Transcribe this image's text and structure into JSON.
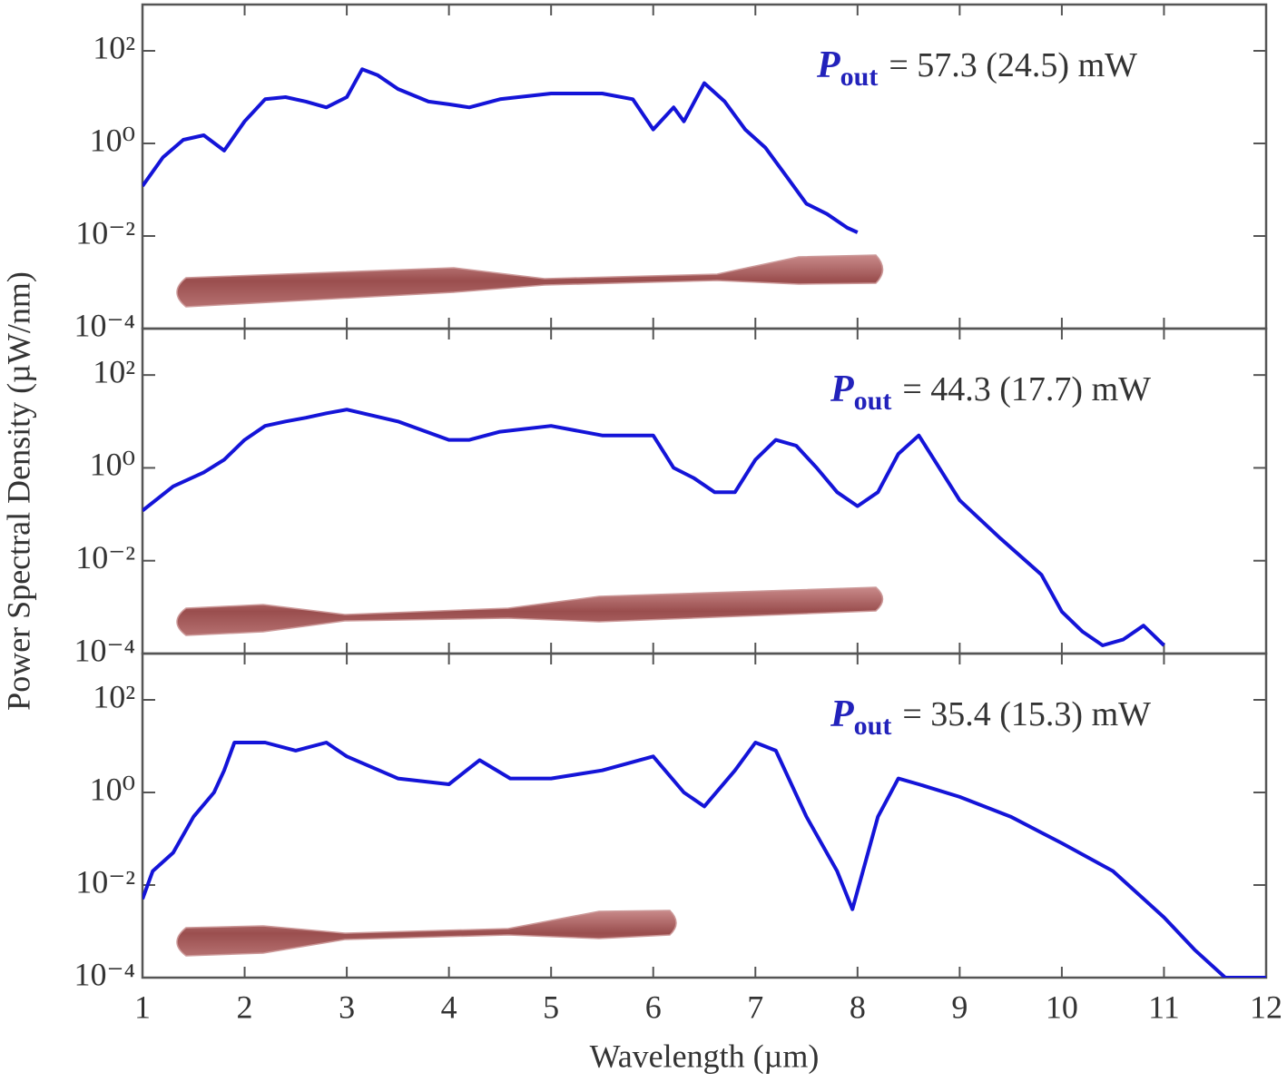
{
  "chart_data": [
    {
      "type": "line",
      "log_y": true,
      "color": "#1414d8",
      "annotation": {
        "symbol": "P",
        "subscript": "out",
        "text": "= 57.3 (24.5) mW"
      },
      "xlim": [
        1,
        12
      ],
      "ylim": [
        0.0001,
        1000
      ],
      "yticks": [
        {
          "value": 0.0001,
          "label": "10⁻⁴"
        },
        {
          "value": 0.01,
          "label": "10⁻²"
        },
        {
          "value": 1,
          "label": "10⁰"
        },
        {
          "value": 100,
          "label": "10²"
        }
      ],
      "x": [
        1.0,
        1.2,
        1.4,
        1.6,
        1.8,
        2.0,
        2.2,
        2.4,
        2.6,
        2.8,
        3.0,
        3.15,
        3.3,
        3.5,
        3.8,
        4.0,
        4.2,
        4.5,
        5.0,
        5.5,
        5.8,
        6.0,
        6.2,
        6.3,
        6.5,
        6.7,
        6.9,
        7.1,
        7.3,
        7.5,
        7.7,
        7.9,
        8.0
      ],
      "values": [
        0.12,
        0.5,
        1.2,
        1.5,
        0.7,
        3,
        9,
        10,
        8,
        6,
        10,
        40,
        30,
        15,
        8,
        7,
        6,
        9,
        12,
        12,
        9,
        2,
        6,
        3,
        20,
        8,
        2,
        0.8,
        0.2,
        0.05,
        0.03,
        0.015,
        0.012
      ]
    },
    {
      "type": "line",
      "log_y": true,
      "color": "#1414d8",
      "annotation": {
        "symbol": "P",
        "subscript": "out",
        "text": "= 44.3 (17.7) mW"
      },
      "ylabel": "Power Spectral Density (µW/nm)",
      "xlim": [
        1,
        12
      ],
      "ylim": [
        0.0001,
        1000
      ],
      "yticks": [
        {
          "value": 0.0001,
          "label": "10⁻⁴"
        },
        {
          "value": 0.01,
          "label": "10⁻²"
        },
        {
          "value": 1,
          "label": "10⁰"
        },
        {
          "value": 100,
          "label": "10²"
        }
      ],
      "x": [
        1.0,
        1.3,
        1.6,
        1.8,
        2.0,
        2.2,
        2.4,
        2.6,
        2.8,
        3.0,
        3.5,
        4.0,
        4.2,
        4.5,
        5.0,
        5.5,
        6.0,
        6.2,
        6.4,
        6.6,
        6.8,
        7.0,
        7.2,
        7.4,
        7.6,
        7.8,
        8.0,
        8.2,
        8.4,
        8.6,
        8.8,
        9.0,
        9.4,
        9.8,
        10.0,
        10.2,
        10.4,
        10.6,
        10.8,
        11.0
      ],
      "values": [
        0.12,
        0.4,
        0.8,
        1.5,
        4,
        8,
        10,
        12,
        15,
        18,
        10,
        4,
        4,
        6,
        8,
        5,
        5,
        1,
        0.6,
        0.3,
        0.3,
        1.5,
        4,
        3,
        1,
        0.3,
        0.15,
        0.3,
        2,
        5,
        1,
        0.2,
        0.03,
        0.005,
        0.0008,
        0.0003,
        0.00015,
        0.0002,
        0.0004,
        0.00015
      ]
    },
    {
      "type": "line",
      "log_y": true,
      "color": "#1414d8",
      "annotation": {
        "symbol": "P",
        "subscript": "out",
        "text": "= 35.4 (15.3) mW"
      },
      "xlabel": "Wavelength (µm)",
      "xlim": [
        1,
        12
      ],
      "xticks": [
        1,
        2,
        3,
        4,
        5,
        6,
        7,
        8,
        9,
        10,
        11,
        12
      ],
      "ylim": [
        0.0001,
        1000
      ],
      "yticks": [
        {
          "value": 0.0001,
          "label": "10⁻⁴"
        },
        {
          "value": 0.01,
          "label": "10⁻²"
        },
        {
          "value": 1,
          "label": "10⁰"
        },
        {
          "value": 100,
          "label": "10²"
        }
      ],
      "x": [
        1.0,
        1.1,
        1.3,
        1.5,
        1.7,
        1.8,
        1.9,
        2.2,
        2.5,
        2.8,
        3.0,
        3.5,
        4.0,
        4.3,
        4.6,
        5.0,
        5.5,
        6.0,
        6.3,
        6.5,
        6.8,
        7.0,
        7.2,
        7.5,
        7.8,
        7.95,
        8.2,
        8.4,
        8.6,
        9.0,
        9.5,
        10.0,
        10.5,
        11.0,
        11.3,
        11.6,
        12.0
      ],
      "values": [
        0.005,
        0.02,
        0.05,
        0.3,
        1,
        3,
        12,
        12,
        8,
        12,
        6,
        2,
        1.5,
        5,
        2,
        2,
        3,
        6,
        1,
        0.5,
        3,
        12,
        8,
        0.3,
        0.02,
        0.003,
        0.3,
        2,
        1.5,
        0.8,
        0.3,
        0.08,
        0.02,
        0.002,
        0.0004,
        0.0001,
        0.0001
      ]
    }
  ]
}
